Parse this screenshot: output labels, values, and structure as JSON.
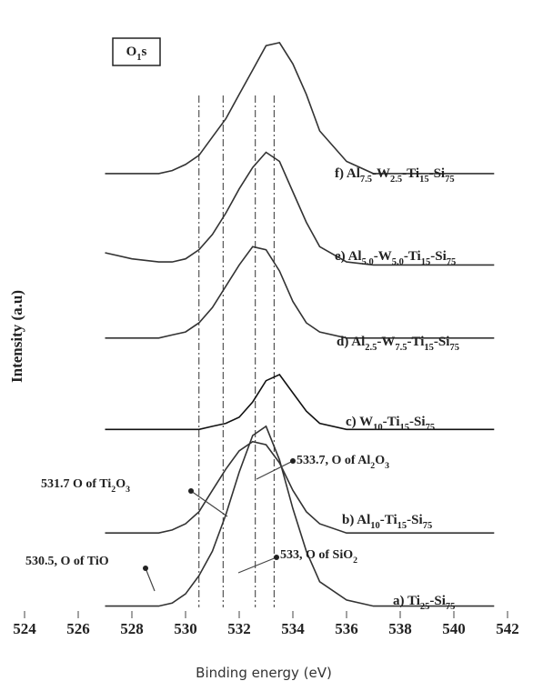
{
  "chart_data": {
    "type": "line",
    "title": "O1s",
    "x_label": "Binding energy (eV)",
    "y_label": "Intensity (a.u)",
    "xlim": [
      524,
      542
    ],
    "xticks": [
      524,
      526,
      528,
      530,
      532,
      534,
      536,
      538,
      540,
      542
    ],
    "ylim": [
      0,
      100
    ],
    "x": [
      527,
      528,
      529,
      529.5,
      530,
      530.5,
      531,
      531.5,
      532,
      532.5,
      533,
      533.5,
      534,
      534.5,
      535,
      536,
      537,
      538,
      540,
      541.5
    ],
    "series": [
      {
        "name": "a) Ti25-Si75",
        "color": "#333333",
        "values": [
          2,
          2,
          2,
          2.5,
          4,
          7,
          11,
          17,
          24,
          30,
          31.5,
          26,
          18,
          11,
          6,
          3,
          2,
          2,
          2,
          2
        ]
      },
      {
        "name": "b) Al10-Ti15-Si75",
        "color": "#333333",
        "values": [
          14,
          14,
          14,
          14.5,
          15.5,
          17.5,
          21,
          24.5,
          27.5,
          29,
          28.5,
          25.5,
          21,
          17.5,
          15.5,
          14,
          14,
          14,
          14,
          14
        ]
      },
      {
        "name": "c) W10-Ti15-Si75",
        "color": "#111111",
        "values": [
          31,
          31,
          31,
          31,
          31,
          31,
          31.5,
          32,
          33,
          35.5,
          39,
          40,
          37,
          34,
          32,
          31,
          31,
          31,
          31,
          31
        ]
      },
      {
        "name": "d) Al2.5-W7.5-Ti15-Si75",
        "color": "#333333",
        "values": [
          46,
          46,
          46,
          46.5,
          47,
          48.5,
          51,
          54.5,
          58,
          61,
          60.5,
          57,
          52,
          48.5,
          47,
          46,
          46,
          46,
          46,
          46
        ]
      },
      {
        "name": "e) Al5.0-W5.0-Ti15-Si75",
        "color": "#333333",
        "values": [
          60,
          59,
          58.5,
          58.5,
          59,
          60.5,
          63,
          66.5,
          70.5,
          74,
          76.5,
          75,
          70,
          65,
          61,
          58.5,
          58,
          58,
          58,
          58
        ]
      },
      {
        "name": "f) Al7.5-W2.5-Ti15-Si75",
        "color": "#333333",
        "values": [
          73,
          73,
          73,
          73.5,
          74.5,
          76,
          79,
          82,
          86,
          90,
          94,
          94.5,
          91,
          86,
          80,
          75,
          73,
          73,
          73,
          73
        ]
      }
    ],
    "reference_lines": [
      530.5,
      531.4,
      532.6,
      533.3
    ],
    "annotations": [
      "531.7 O of Ti2O3",
      "533.7, O of Al2O3",
      "533, O of SiO2",
      "530.5, O of TiO"
    ]
  }
}
